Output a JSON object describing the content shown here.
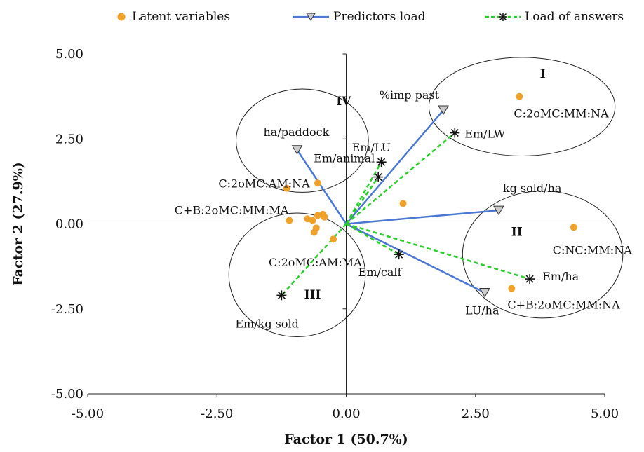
{
  "legend": {
    "latent": "Latent variables",
    "predictors": "Predictors load",
    "answers": "Load of answers"
  },
  "colors": {
    "latent": "#f0a12a",
    "predictors": "#4a78d2",
    "answers": "#2bcf2b",
    "axis": "#222222",
    "ellipse": "#222222"
  },
  "chart_data": {
    "type": "scatter",
    "xlabel": "Factor 1 (50.7%)",
    "ylabel": "Factor 2 (27.9%)",
    "xlim": [
      -5,
      5
    ],
    "ylim": [
      -5,
      5
    ],
    "xticks": [
      -5,
      -2.5,
      0,
      2.5,
      5
    ],
    "yticks": [
      -5,
      -2.5,
      0,
      2.5,
      5
    ],
    "xtick_labels": [
      "-5.00",
      "-2.50",
      "0.00",
      "2.50",
      "5.00"
    ],
    "ytick_labels": [
      "-5.00",
      "-2.50",
      "0.00",
      "2.50",
      "5.00"
    ],
    "grid": false,
    "legend_position": "top",
    "series": [
      {
        "name": "Latent variables",
        "kind": "points",
        "points": [
          {
            "x": 3.35,
            "y": 3.75,
            "label": "C:2oMC:MM:NA"
          },
          {
            "x": -1.15,
            "y": 1.05,
            "label": "C:2oMC:AM:NA"
          },
          {
            "x": -0.55,
            "y": 1.2,
            "label": ""
          },
          {
            "x": 1.1,
            "y": 0.6,
            "label": ""
          },
          {
            "x": -1.1,
            "y": 0.1,
            "label": "C+B:2oMC:MM:MA"
          },
          {
            "x": -0.75,
            "y": 0.15,
            "label": ""
          },
          {
            "x": -0.65,
            "y": 0.1,
            "label": ""
          },
          {
            "x": -0.55,
            "y": 0.25,
            "label": ""
          },
          {
            "x": -0.45,
            "y": 0.28,
            "label": ""
          },
          {
            "x": -0.42,
            "y": 0.2,
            "label": ""
          },
          {
            "x": -0.58,
            "y": -0.12,
            "label": ""
          },
          {
            "x": -0.62,
            "y": -0.25,
            "label": ""
          },
          {
            "x": -0.25,
            "y": -0.45,
            "label": ""
          },
          {
            "x": 4.4,
            "y": -0.1,
            "label": "C:NC:MM:NA"
          },
          {
            "x": 3.2,
            "y": -1.9,
            "label": "C+B:2oMC:MM:NA"
          }
        ]
      },
      {
        "name": "Predictors load",
        "kind": "vectors",
        "points": [
          {
            "x": 1.88,
            "y": 3.35,
            "label": "%imp past"
          },
          {
            "x": -0.95,
            "y": 2.18,
            "label": "ha/paddock"
          },
          {
            "x": 2.95,
            "y": 0.4,
            "label": "kg sold/ha"
          },
          {
            "x": 2.68,
            "y": -2.02,
            "label": "LU/ha"
          }
        ]
      },
      {
        "name": "Load of answers",
        "kind": "vectors",
        "points": [
          {
            "x": 2.1,
            "y": 2.68,
            "label": "Em/LW"
          },
          {
            "x": 0.68,
            "y": 1.82,
            "label": "Em/LU"
          },
          {
            "x": 0.62,
            "y": 1.38,
            "label": "Em/animal"
          },
          {
            "x": 1.02,
            "y": -0.9,
            "label": "Em/calf"
          },
          {
            "x": 3.55,
            "y": -1.62,
            "label": "Em/ha"
          },
          {
            "x": -1.25,
            "y": -2.1,
            "label": "Em/kg sold"
          }
        ]
      }
    ],
    "annotations": [
      {
        "label": "C:2oMC:AM:MA",
        "x": -1.5,
        "y": -1.25
      },
      {
        "label": "I",
        "x": 3.8,
        "y": 4.3
      },
      {
        "label": "II",
        "x": 3.3,
        "y": -0.35
      },
      {
        "label": "III",
        "x": -0.65,
        "y": -2.2
      },
      {
        "label": "IV",
        "x": -0.05,
        "y": 3.5
      }
    ],
    "groups": [
      {
        "name": "I",
        "cx": 3.4,
        "cy": 3.45,
        "rx": 1.8,
        "ry": 1.45
      },
      {
        "name": "II",
        "cx": 3.8,
        "cy": -0.9,
        "rx": 1.55,
        "ry": 1.87
      },
      {
        "name": "III",
        "cx": -0.95,
        "cy": -1.5,
        "rx": 1.32,
        "ry": 1.82
      },
      {
        "name": "IV",
        "cx": -0.85,
        "cy": 2.45,
        "rx": 1.28,
        "ry": 1.52
      }
    ]
  }
}
